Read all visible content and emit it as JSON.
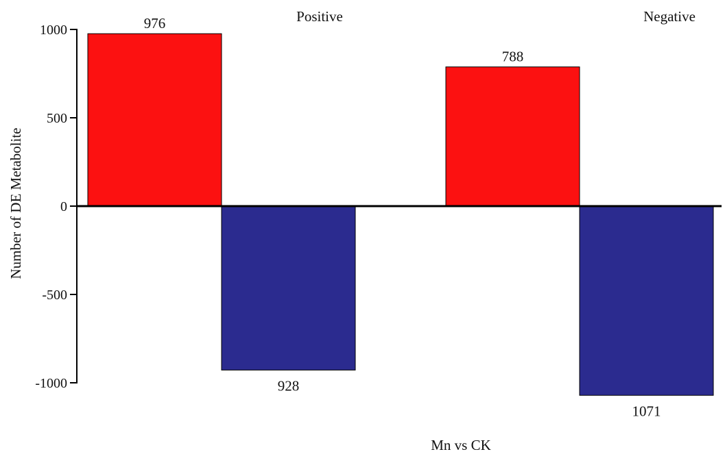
{
  "chart_data": {
    "type": "bar",
    "title": "",
    "xlabel": "Mn vs CK",
    "ylabel": "Number of DE Metabolite",
    "ylim": [
      -1000,
      1000
    ],
    "yticks": [
      1000,
      500,
      0,
      -500,
      -1000
    ],
    "yticks_text": [
      "1000",
      "500",
      "0",
      "-500",
      "-1000"
    ],
    "grid": false,
    "legend": "none",
    "panels": [
      {
        "name": "Positive",
        "bars": [
          {
            "value": 976,
            "label": "976",
            "color": "#fc1111"
          },
          {
            "value": -928,
            "label": "928",
            "color": "#2b2b8f"
          }
        ]
      },
      {
        "name": "Negative",
        "bars": [
          {
            "value": 788,
            "label": "788",
            "color": "#fc1111"
          },
          {
            "value": -1071,
            "label": "1071",
            "color": "#2b2b8f"
          }
        ]
      }
    ]
  }
}
